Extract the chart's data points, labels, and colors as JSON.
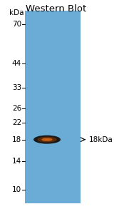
{
  "title": "Western Blot",
  "title_fontsize": 9.5,
  "title_color": "#000000",
  "panel_bg": "#ffffff",
  "gel_bg": "#6bacd6",
  "kda_label": "kDa",
  "marker_positions": [
    70,
    44,
    33,
    26,
    22,
    18,
    14,
    10
  ],
  "band_kda": 18,
  "band_color_dark": "#1a1a1a",
  "band_color_mid": "#5c2a08",
  "band_color_center": "#c8621a",
  "ylim_min": 8.5,
  "ylim_max": 82,
  "marker_fontsize": 7.5,
  "annotation_fontsize": 7.5,
  "arrow_label": "18kDa",
  "fig_width": 1.81,
  "fig_height": 3.0,
  "fig_dpi": 100
}
